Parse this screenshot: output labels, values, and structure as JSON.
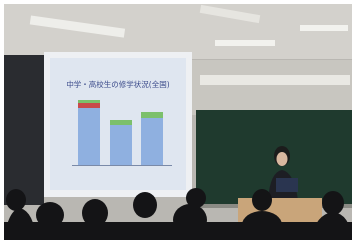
{
  "slide": {
    "title": "中学・高校生の修学状況(全国)"
  }
}
